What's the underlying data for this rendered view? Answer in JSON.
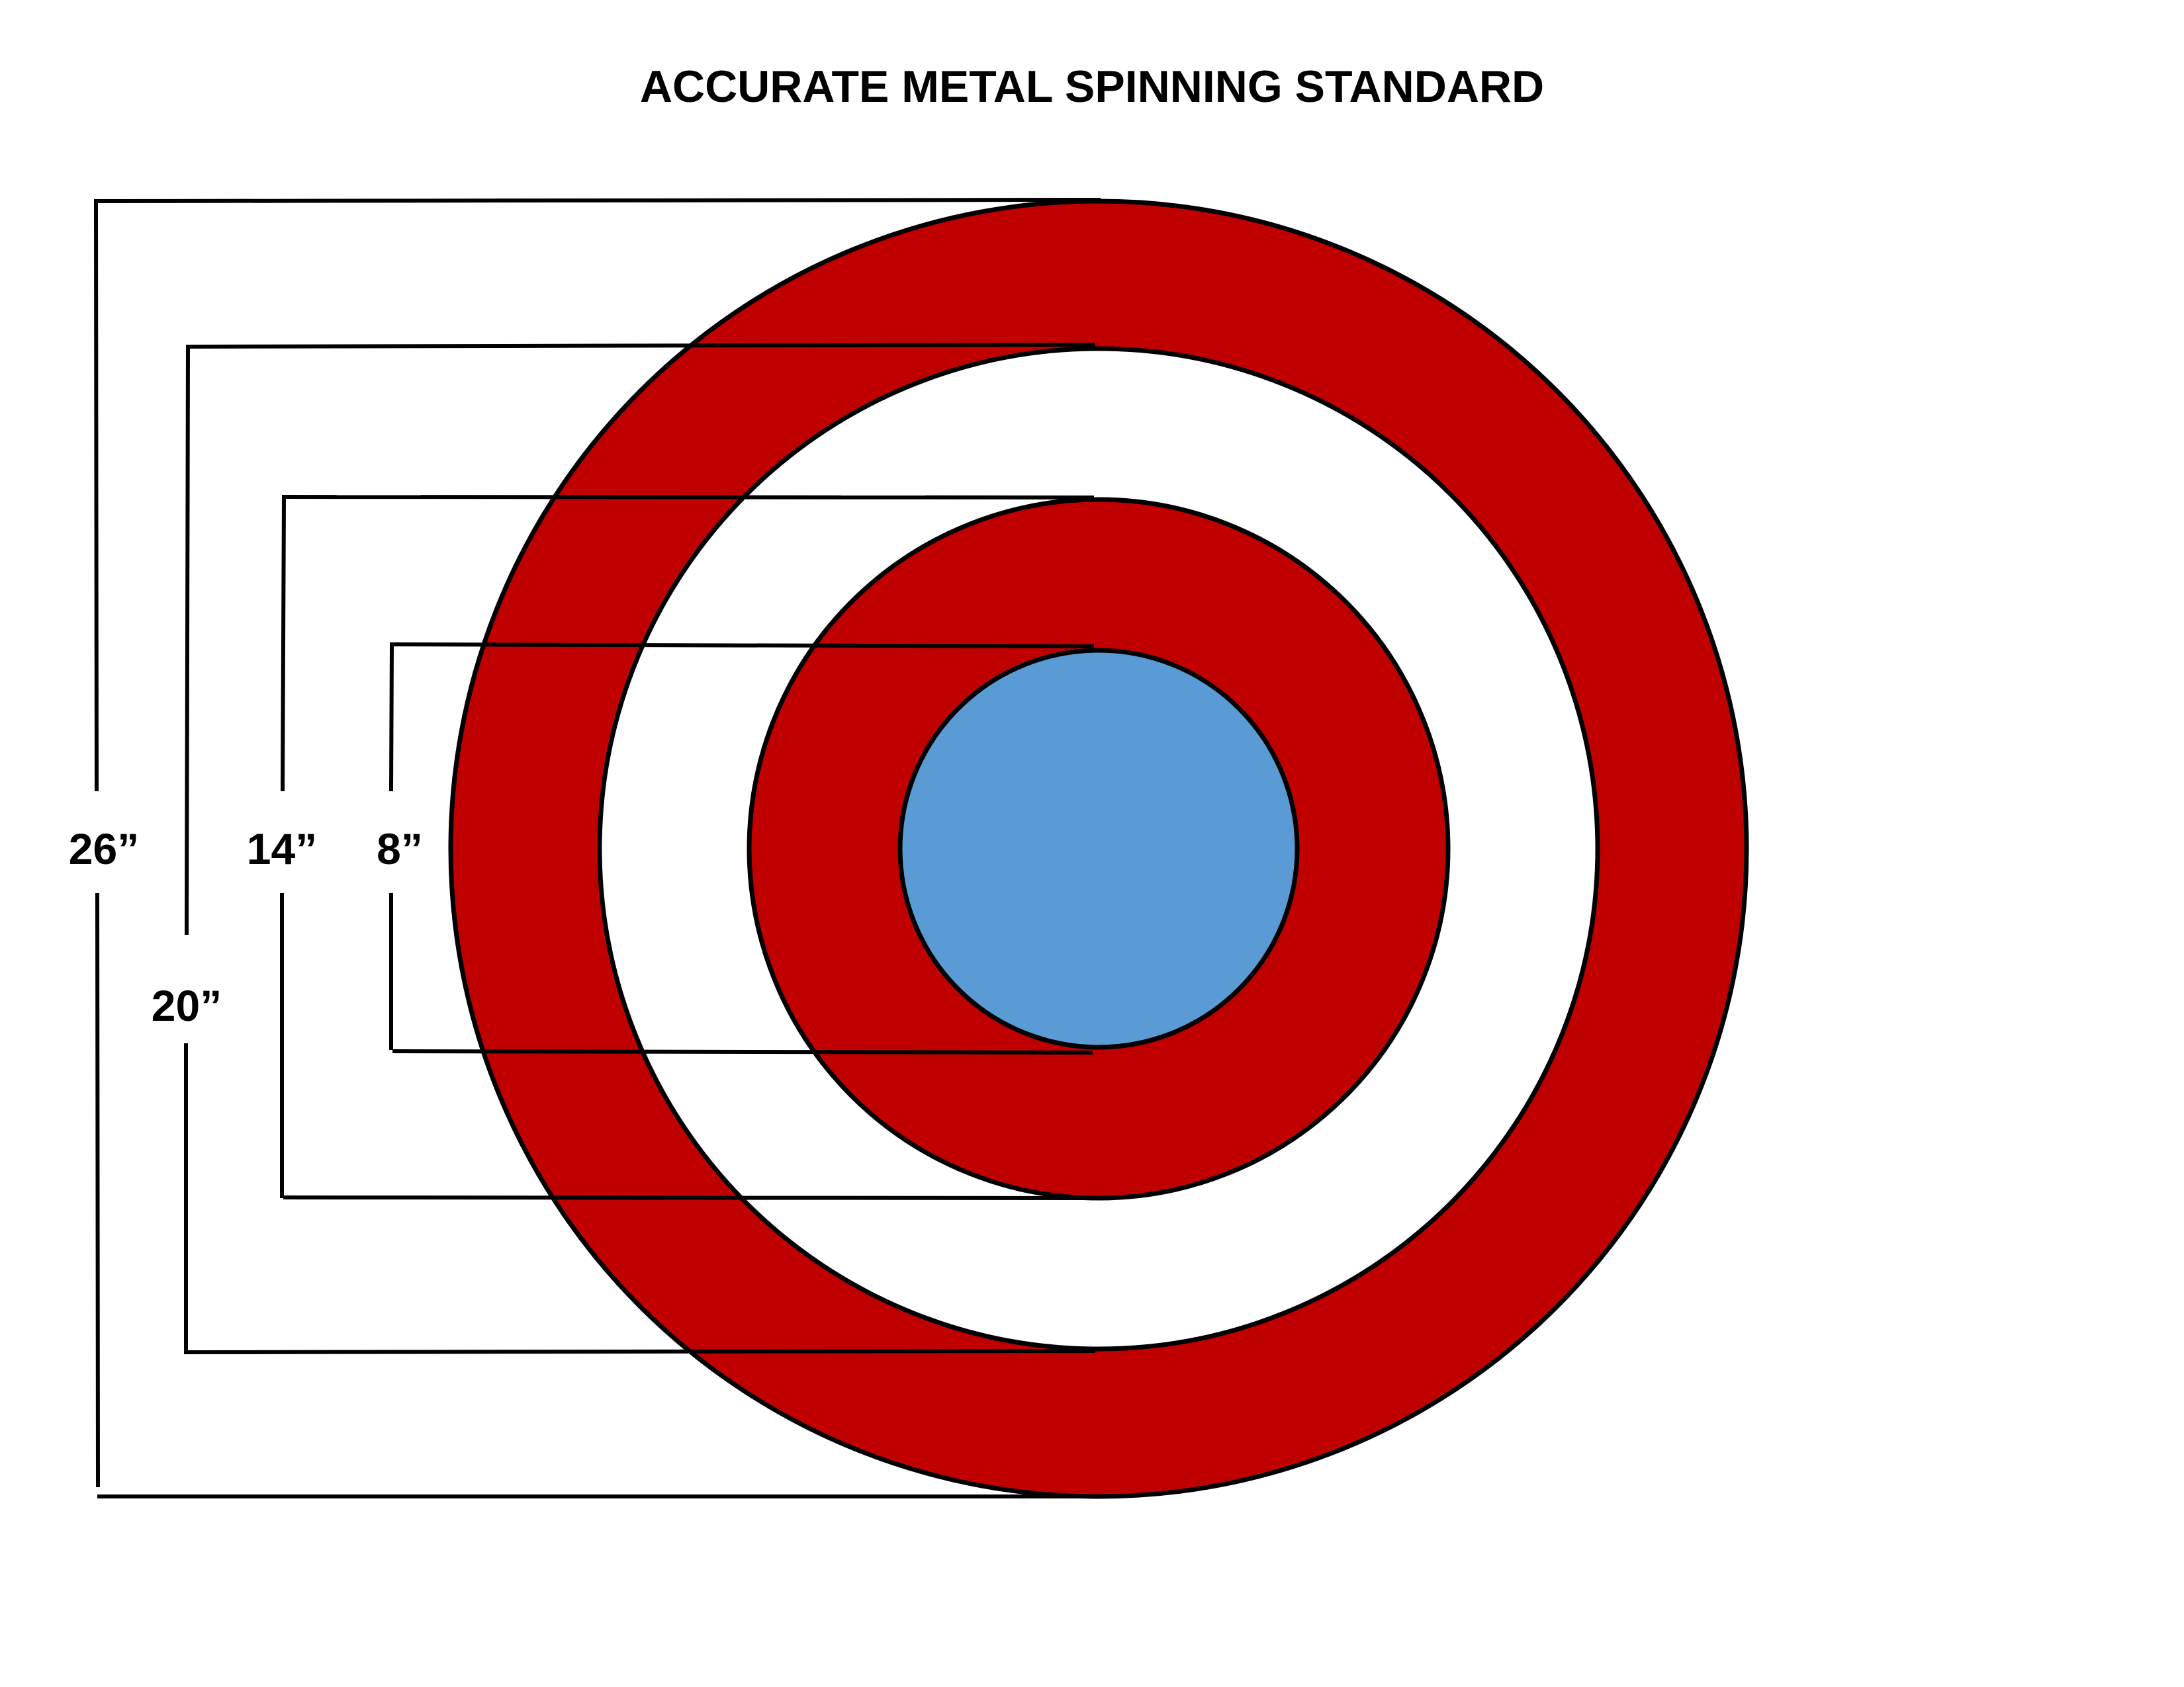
{
  "title": "ACCURATE METAL SPINNING STANDARD",
  "colors": {
    "ring_red": "#c00000",
    "center_blue": "#5b9bd5",
    "gap_white": "#ffffff",
    "outline": "#000000"
  },
  "rings": [
    {
      "diameter_label": "26”",
      "diameter_in": 26,
      "fill": "red"
    },
    {
      "diameter_label": "20”",
      "diameter_in": 20,
      "fill": "white"
    },
    {
      "diameter_label": "14”",
      "diameter_in": 14,
      "fill": "red"
    },
    {
      "diameter_label": "8”",
      "diameter_in": 8,
      "fill": "blue"
    }
  ]
}
